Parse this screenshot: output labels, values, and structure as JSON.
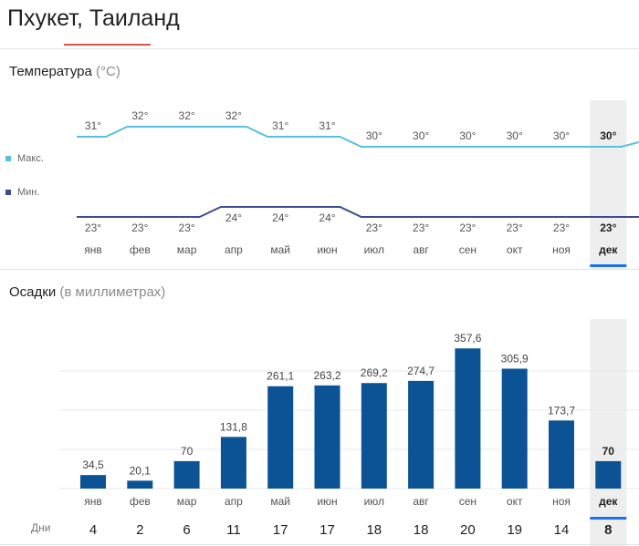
{
  "header": {
    "title": "Пхукет, Таиланд"
  },
  "temperature": {
    "title": "Температура",
    "unit": "(°C)",
    "legend": {
      "max_label": "Макс.",
      "min_label": "Мин."
    }
  },
  "precipitation": {
    "title": "Осадки",
    "unit": "(в миллиметрах)",
    "days_label": "Дни"
  },
  "colors": {
    "max_line": "#5bc0de",
    "min_line": "#3f4d8e",
    "bar": "#0b5394",
    "selected_bg": "#eeeeee",
    "selected_underline": "#1a73e8",
    "title_accent": "#d9534f"
  },
  "selected_month": "дек",
  "chart_data": [
    {
      "type": "line",
      "categories": [
        "янв",
        "фев",
        "мар",
        "апр",
        "май",
        "июн",
        "июл",
        "авг",
        "сен",
        "окт",
        "ноя",
        "дек"
      ],
      "series": [
        {
          "name": "Макс.",
          "values": [
            31,
            32,
            32,
            32,
            31,
            31,
            30,
            30,
            30,
            30,
            30,
            30
          ],
          "labels": [
            "31°",
            "32°",
            "32°",
            "32°",
            "31°",
            "31°",
            "30°",
            "30°",
            "30°",
            "30°",
            "30°",
            "30°"
          ]
        },
        {
          "name": "Мин.",
          "values": [
            23,
            23,
            23,
            24,
            24,
            24,
            23,
            23,
            23,
            23,
            23,
            23
          ],
          "labels": [
            "23°",
            "23°",
            "23°",
            "24°",
            "24°",
            "24°",
            "23°",
            "23°",
            "23°",
            "23°",
            "23°",
            "23°"
          ]
        }
      ],
      "title": "Температура",
      "ylabel": "(°C)",
      "legend": "left"
    },
    {
      "type": "bar",
      "categories": [
        "янв",
        "фев",
        "мар",
        "апр",
        "май",
        "июн",
        "июл",
        "авг",
        "сен",
        "окт",
        "ноя",
        "дек"
      ],
      "values": [
        34.5,
        20.1,
        70,
        131.8,
        261.1,
        263.2,
        269.2,
        274.7,
        357.6,
        305.9,
        173.7,
        70
      ],
      "value_labels": [
        "34,5",
        "20,1",
        "70",
        "131,8",
        "261,1",
        "263,2",
        "269,2",
        "274,7",
        "357,6",
        "305,9",
        "173,7",
        "70"
      ],
      "days": [
        4,
        2,
        6,
        11,
        17,
        17,
        18,
        18,
        20,
        19,
        14,
        8
      ],
      "title": "Осадки",
      "ylabel": "(в миллиметрах)",
      "ylim": [
        0,
        400
      ],
      "grid": true
    }
  ]
}
